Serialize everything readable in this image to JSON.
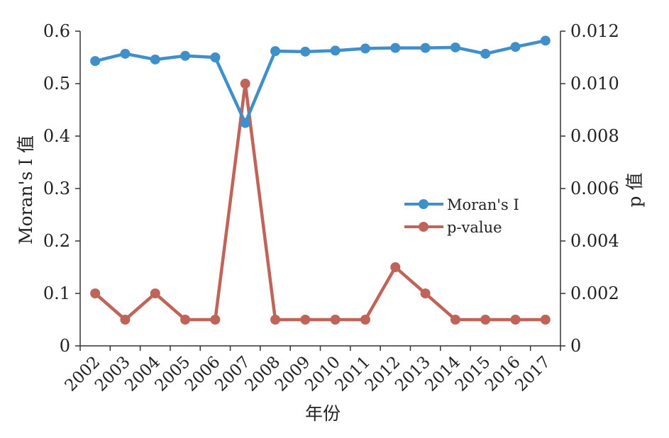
{
  "chart_data": {
    "type": "line",
    "x": [
      "2002",
      "2003",
      "2004",
      "2005",
      "2006",
      "2007",
      "2008",
      "2009",
      "2010",
      "2011",
      "2012",
      "2013",
      "2014",
      "2015",
      "2016",
      "2017"
    ],
    "xlabel": "年份",
    "ylabel_left": "Moran's I 值",
    "ylabel_right": "p 值",
    "ylim_left": [
      0,
      0.6
    ],
    "ylim_right": [
      0,
      0.012
    ],
    "yticks_left": [
      "0",
      "0.1",
      "0.2",
      "0.3",
      "0.4",
      "0.5",
      "0.6"
    ],
    "yticks_right": [
      "0",
      "0.002",
      "0.004",
      "0.006",
      "0.008",
      "0.010",
      "0.012"
    ],
    "grid": false,
    "legend_position": "center-right",
    "series": [
      {
        "name": "Moran's I",
        "axis": "left",
        "color": "#3f8fca",
        "values": [
          0.543,
          0.557,
          0.546,
          0.553,
          0.55,
          0.425,
          0.562,
          0.561,
          0.563,
          0.567,
          0.568,
          0.568,
          0.569,
          0.557,
          0.57,
          0.582
        ]
      },
      {
        "name": "p-value",
        "axis": "right",
        "color": "#c0645a",
        "values": [
          0.002,
          0.001,
          0.002,
          0.001,
          0.001,
          0.01,
          0.001,
          0.001,
          0.001,
          0.001,
          0.003,
          0.002,
          0.001,
          0.001,
          0.001,
          0.001
        ]
      }
    ]
  }
}
